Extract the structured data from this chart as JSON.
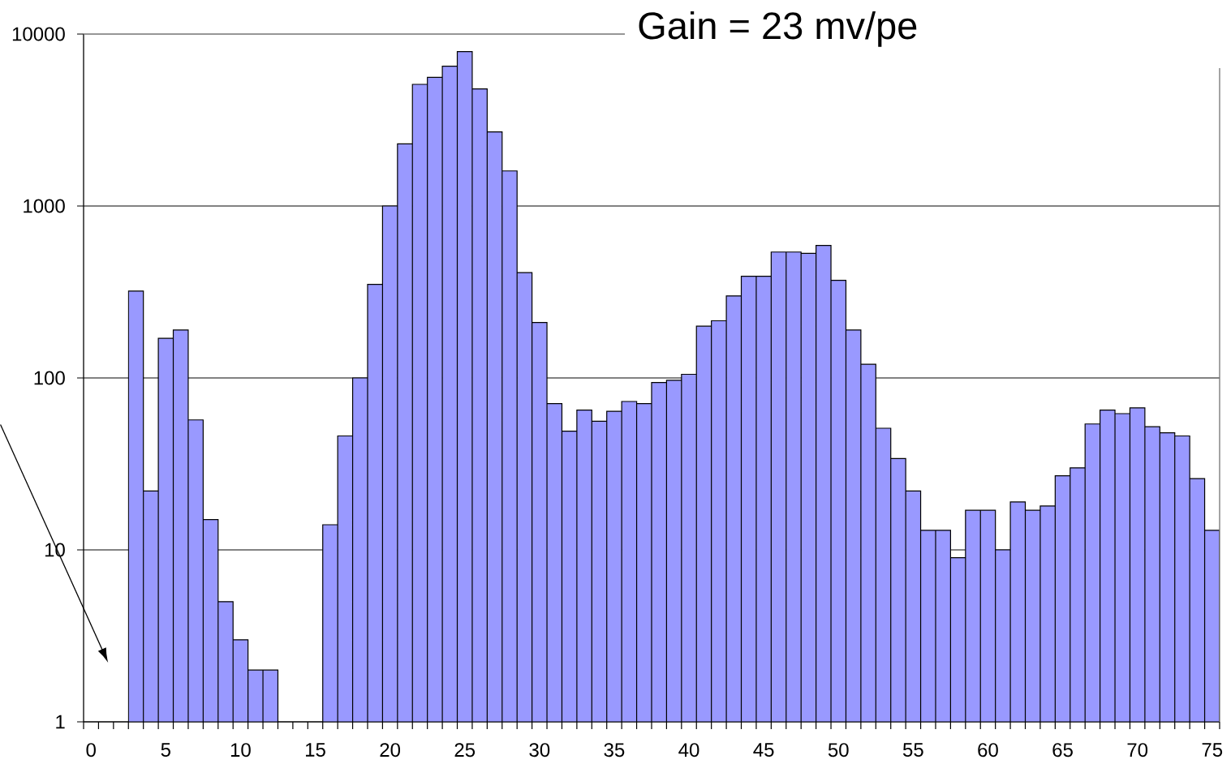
{
  "chart_data": {
    "type": "bar",
    "title": "Gain = 23 mv/pe",
    "categories": [
      "0",
      null,
      null,
      null,
      null,
      "5",
      null,
      null,
      null,
      null,
      "10",
      null,
      null,
      null,
      null,
      "15",
      null,
      null,
      null,
      null,
      "20",
      null,
      null,
      null,
      null,
      "25",
      null,
      null,
      null,
      null,
      "30",
      null,
      null,
      null,
      null,
      "35",
      null,
      null,
      null,
      null,
      "40",
      null,
      null,
      null,
      null,
      "45",
      null,
      null,
      null,
      null,
      "50",
      null,
      null,
      null,
      null,
      "55",
      null,
      null,
      null,
      null,
      "60",
      null,
      null,
      null,
      null,
      "65",
      null,
      null,
      null,
      null,
      "70",
      null,
      null,
      null,
      null,
      "75"
    ],
    "values": [
      null,
      null,
      null,
      320,
      22,
      170,
      190,
      57,
      15,
      5,
      3,
      2,
      2,
      null,
      null,
      null,
      14,
      46,
      100,
      350,
      1000,
      2300,
      5100,
      5600,
      6500,
      7900,
      4800,
      2700,
      1600,
      410,
      210,
      71,
      49,
      65,
      56,
      64,
      73,
      71,
      94,
      97,
      105,
      200,
      215,
      300,
      390,
      390,
      540,
      540,
      530,
      590,
      370,
      190,
      120,
      51,
      34,
      22,
      13,
      13,
      9,
      17,
      17,
      10,
      19,
      17,
      18,
      27,
      30,
      54,
      65,
      62,
      67,
      52,
      48,
      46,
      26,
      13
    ],
    "color": "#9999ff",
    "log": true,
    "ylim": [
      1,
      10000
    ],
    "yticks": [
      1,
      10,
      100,
      1000,
      10000
    ],
    "grid": "y"
  }
}
